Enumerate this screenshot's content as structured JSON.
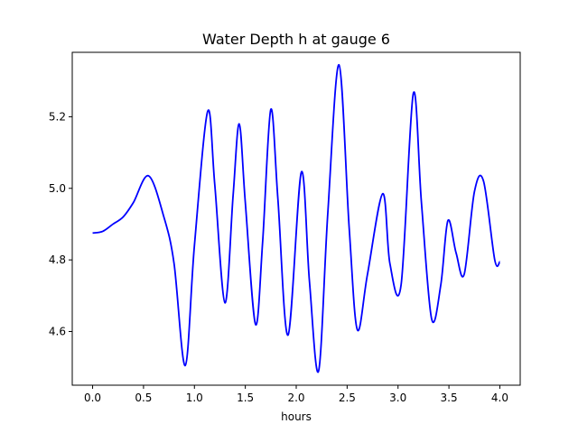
{
  "chart_data": {
    "type": "line",
    "title": "Water Depth h at gauge 6",
    "xlabel": "hours",
    "ylabel": "",
    "xlim": [
      -0.2,
      4.2
    ],
    "ylim": [
      4.45,
      5.38
    ],
    "xticks": [
      0.0,
      0.5,
      1.0,
      1.5,
      2.0,
      2.5,
      3.0,
      3.5,
      4.0
    ],
    "xtick_labels": [
      "0.0",
      "0.5",
      "1.0",
      "1.5",
      "2.0",
      "2.5",
      "3.0",
      "3.5",
      "4.0"
    ],
    "yticks": [
      4.6,
      4.8,
      5.0,
      5.2
    ],
    "ytick_labels": [
      "4.6",
      "4.8",
      "5.0",
      "5.2"
    ],
    "grid": false,
    "series": [
      {
        "color": "#0000ff",
        "x": [
          0.0,
          0.1,
          0.2,
          0.3,
          0.4,
          0.55,
          0.7,
          0.8,
          0.91,
          1.0,
          1.13,
          1.2,
          1.3,
          1.38,
          1.44,
          1.5,
          1.6,
          1.67,
          1.75,
          1.82,
          1.92,
          2.05,
          2.13,
          2.22,
          2.31,
          2.42,
          2.52,
          2.6,
          2.7,
          2.85,
          2.92,
          3.03,
          3.15,
          3.23,
          3.33,
          3.42,
          3.49,
          3.57,
          3.65,
          3.75,
          3.84,
          3.95,
          4.0
        ],
        "y": [
          4.875,
          4.88,
          4.9,
          4.92,
          4.96,
          5.035,
          4.92,
          4.79,
          4.505,
          4.84,
          5.215,
          5.01,
          4.68,
          4.98,
          5.18,
          4.96,
          4.62,
          4.85,
          5.22,
          4.97,
          4.59,
          5.045,
          4.74,
          4.49,
          4.93,
          5.345,
          4.89,
          4.605,
          4.76,
          4.985,
          4.79,
          4.73,
          5.265,
          4.96,
          4.635,
          4.73,
          4.91,
          4.82,
          4.76,
          4.99,
          5.02,
          4.8,
          4.795
        ]
      }
    ]
  }
}
